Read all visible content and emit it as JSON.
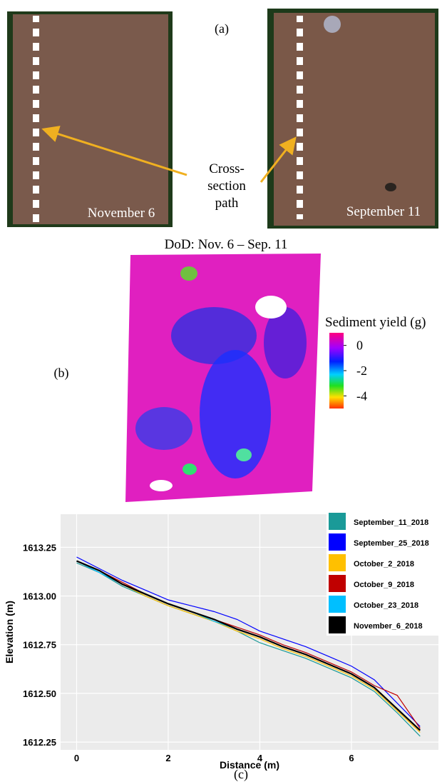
{
  "panels": {
    "a": {
      "label": "(a)",
      "left_date": "November 6",
      "right_date": "September 11",
      "callout": [
        "Cross-",
        "section",
        "path"
      ]
    },
    "b": {
      "label": "(b)",
      "title": "DoD: Nov. 6 – Sep. 11",
      "colorbar": {
        "title": "Sediment yield (g)",
        "lim": [
          -5,
          1
        ],
        "ticks": [
          0,
          -2,
          -4
        ]
      }
    },
    "c": {
      "label": "(c)"
    }
  },
  "chart_data": {
    "type": "line",
    "x_label": "Distance (m)",
    "y_label": "Elevation (m)",
    "x": [
      0,
      0.5,
      1,
      1.5,
      2,
      2.5,
      3,
      3.5,
      4,
      4.5,
      5,
      5.5,
      6,
      6.5,
      7,
      7.5
    ],
    "series": [
      {
        "name": "September_11_2018",
        "color": "#1a9a98",
        "values": [
          1613.17,
          1613.12,
          1613.05,
          1613.0,
          1612.95,
          1612.91,
          1612.87,
          1612.82,
          1612.76,
          1612.72,
          1612.68,
          1612.63,
          1612.58,
          1612.51,
          1612.4,
          1612.28
        ]
      },
      {
        "name": "September_25_2018",
        "color": "#0000ff",
        "values": [
          1613.2,
          1613.14,
          1613.08,
          1613.03,
          1612.98,
          1612.95,
          1612.92,
          1612.88,
          1612.82,
          1612.78,
          1612.74,
          1612.69,
          1612.64,
          1612.57,
          1612.45,
          1612.33
        ]
      },
      {
        "name": "October_2_2018",
        "color": "#ffc000",
        "values": [
          1613.18,
          1613.13,
          1613.06,
          1613.0,
          1612.95,
          1612.91,
          1612.87,
          1612.82,
          1612.78,
          1612.73,
          1612.69,
          1612.64,
          1612.59,
          1612.52,
          1612.41,
          1612.3
        ]
      },
      {
        "name": "October_9_2018",
        "color": "#c00000",
        "values": [
          1613.18,
          1613.13,
          1613.07,
          1613.01,
          1612.96,
          1612.92,
          1612.88,
          1612.84,
          1612.8,
          1612.75,
          1612.71,
          1612.66,
          1612.61,
          1612.54,
          1612.49,
          1612.32
        ]
      },
      {
        "name": "October_23_2018",
        "color": "#00bfff",
        "values": [
          1613.18,
          1613.12,
          1613.06,
          1613.01,
          1612.96,
          1612.92,
          1612.87,
          1612.83,
          1612.79,
          1612.74,
          1612.7,
          1612.65,
          1612.6,
          1612.53,
          1612.42,
          1612.31
        ]
      },
      {
        "name": "November_6_2018",
        "color": "#000000",
        "values": [
          1613.18,
          1613.13,
          1613.06,
          1613.01,
          1612.96,
          1612.92,
          1612.88,
          1612.83,
          1612.79,
          1612.74,
          1612.7,
          1612.65,
          1612.6,
          1612.53,
          1612.42,
          1612.31
        ]
      }
    ],
    "xlim": [
      -0.35,
      7.9
    ],
    "ylim": [
      1612.21,
      1613.42
    ],
    "xticks": [
      0,
      2,
      4,
      6
    ],
    "yticks": [
      {
        "value": 1612.25,
        "label": "1612.25"
      },
      {
        "value": 1612.5,
        "label": "1612.50"
      },
      {
        "value": 1612.75,
        "label": "1612.75"
      },
      {
        "value": 1613,
        "label": "1613.00"
      },
      {
        "value": 1613.25,
        "label": "1613.25"
      }
    ],
    "grid": true,
    "legend": "top-right"
  }
}
